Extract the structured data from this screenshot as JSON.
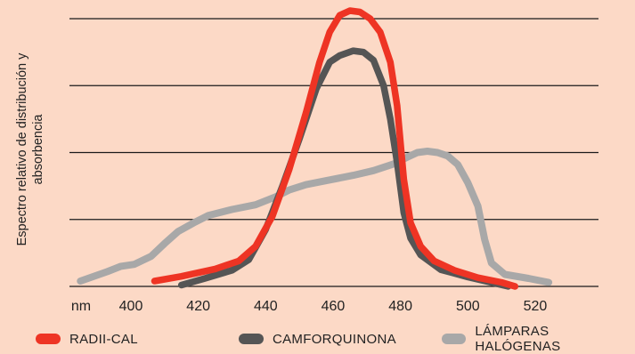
{
  "chart_data": {
    "type": "line",
    "ylabel_lines": [
      "Espectro relativo de distribución y",
      "absorbencia"
    ],
    "x_unit": "nm",
    "x_ticks": [
      400,
      420,
      440,
      460,
      480,
      500,
      520
    ],
    "xlim": [
      382,
      545
    ],
    "ylim": [
      0,
      4
    ],
    "y_gridlines": [
      1,
      2,
      3,
      4
    ],
    "grid": true,
    "legend_position": "bottom",
    "series": [
      {
        "name": "RADII-CAL",
        "color": "#ee3424",
        "points": [
          [
            407,
            0.08
          ],
          [
            415,
            0.15
          ],
          [
            425,
            0.26
          ],
          [
            432,
            0.38
          ],
          [
            437,
            0.6
          ],
          [
            442,
            1.05
          ],
          [
            447,
            1.75
          ],
          [
            452,
            2.6
          ],
          [
            456,
            3.35
          ],
          [
            459,
            3.8
          ],
          [
            462,
            4.05
          ],
          [
            465,
            4.12
          ],
          [
            468,
            4.1
          ],
          [
            471,
            4.0
          ],
          [
            474,
            3.8
          ],
          [
            477,
            3.35
          ],
          [
            479,
            2.7
          ],
          [
            481,
            1.6
          ],
          [
            483,
            0.95
          ],
          [
            486,
            0.6
          ],
          [
            490,
            0.38
          ],
          [
            496,
            0.24
          ],
          [
            503,
            0.13
          ],
          [
            510,
            0.06
          ],
          [
            514,
            0.0
          ]
        ]
      },
      {
        "name": "CAMFORQUINONA",
        "color": "#555555",
        "points": [
          [
            415,
            0.02
          ],
          [
            422,
            0.12
          ],
          [
            430,
            0.24
          ],
          [
            435,
            0.4
          ],
          [
            440,
            0.85
          ],
          [
            445,
            1.5
          ],
          [
            450,
            2.2
          ],
          [
            455,
            2.95
          ],
          [
            459,
            3.35
          ],
          [
            462,
            3.45
          ],
          [
            466,
            3.52
          ],
          [
            469,
            3.5
          ],
          [
            472,
            3.38
          ],
          [
            475,
            3.0
          ],
          [
            477,
            2.5
          ],
          [
            479,
            1.85
          ],
          [
            481,
            1.1
          ],
          [
            483,
            0.72
          ],
          [
            486,
            0.47
          ],
          [
            492,
            0.25
          ],
          [
            500,
            0.14
          ],
          [
            506,
            0.07
          ],
          [
            512,
            0.0
          ]
        ]
      },
      {
        "name": "LÁMPARAS HALÓGENAS",
        "color": "#a8a8a8",
        "points": [
          [
            385,
            0.08
          ],
          [
            393,
            0.22
          ],
          [
            397,
            0.3
          ],
          [
            401,
            0.33
          ],
          [
            406,
            0.45
          ],
          [
            410,
            0.64
          ],
          [
            414,
            0.82
          ],
          [
            419,
            0.96
          ],
          [
            423,
            1.06
          ],
          [
            430,
            1.15
          ],
          [
            437,
            1.22
          ],
          [
            443,
            1.34
          ],
          [
            447,
            1.44
          ],
          [
            452,
            1.52
          ],
          [
            458,
            1.58
          ],
          [
            466,
            1.66
          ],
          [
            472,
            1.73
          ],
          [
            478,
            1.83
          ],
          [
            482,
            1.93
          ],
          [
            485,
            2.0
          ],
          [
            488,
            2.02
          ],
          [
            491,
            2.0
          ],
          [
            494,
            1.95
          ],
          [
            497,
            1.82
          ],
          [
            500,
            1.55
          ],
          [
            503,
            1.2
          ],
          [
            505,
            0.7
          ],
          [
            507,
            0.35
          ],
          [
            511,
            0.18
          ],
          [
            518,
            0.12
          ],
          [
            524,
            0.06
          ]
        ]
      }
    ]
  }
}
